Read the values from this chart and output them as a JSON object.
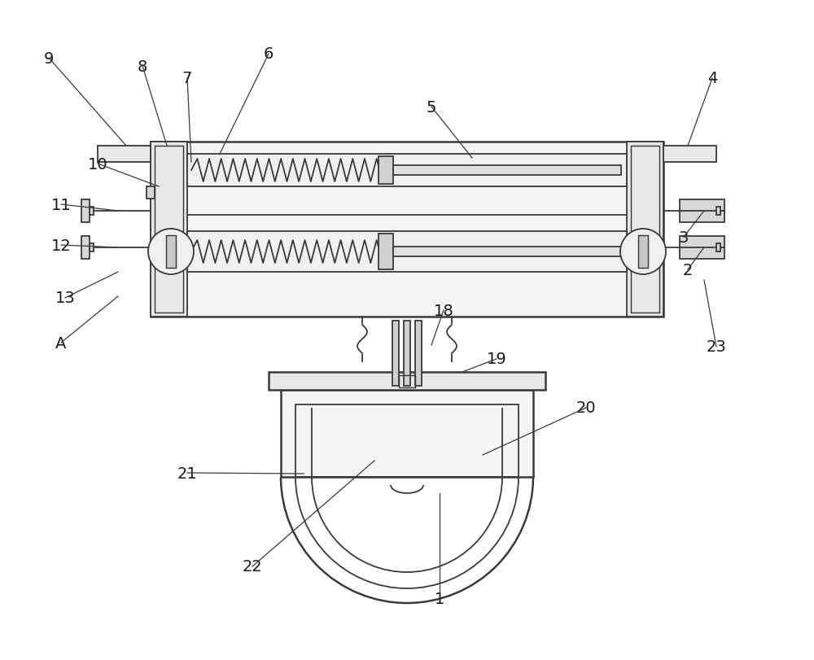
{
  "bg_color": "#ffffff",
  "line_color": "#3a3a3a",
  "lw": 1.3,
  "fig_width": 10.0,
  "fig_height": 8.12
}
